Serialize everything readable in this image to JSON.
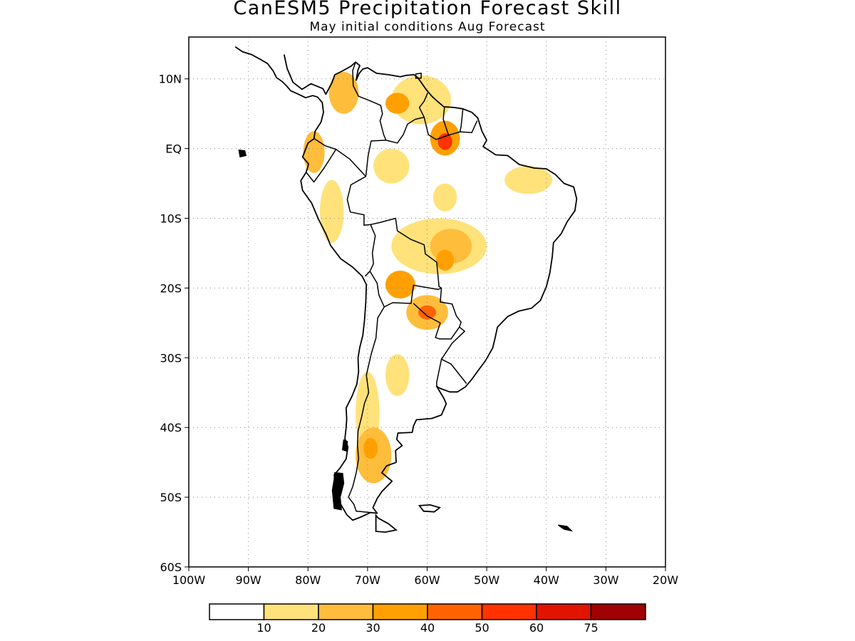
{
  "title": "CanESM5 Precipitation Forecast Skill",
  "subtitle": "May initial conditions  Aug Forecast",
  "map": {
    "region": "South America",
    "lon_range": [
      -100,
      -20
    ],
    "lat_range": [
      -60,
      16
    ],
    "lat_ticks": [
      {
        "value": 10,
        "label": "10N"
      },
      {
        "value": 0,
        "label": "EQ"
      },
      {
        "value": -10,
        "label": "10S"
      },
      {
        "value": -20,
        "label": "20S"
      },
      {
        "value": -30,
        "label": "30S"
      },
      {
        "value": -40,
        "label": "40S"
      },
      {
        "value": -50,
        "label": "50S"
      },
      {
        "value": -60,
        "label": "60S"
      }
    ],
    "lon_ticks": [
      {
        "value": -100,
        "label": "100W"
      },
      {
        "value": -90,
        "label": "90W"
      },
      {
        "value": -80,
        "label": "80W"
      },
      {
        "value": -70,
        "label": "70W"
      },
      {
        "value": -60,
        "label": "60W"
      },
      {
        "value": -50,
        "label": "50W"
      },
      {
        "value": -40,
        "label": "40W"
      },
      {
        "value": -30,
        "label": "30W"
      },
      {
        "value": -20,
        "label": "20W"
      }
    ],
    "gridlines": "dotted",
    "skill_regions": [
      {
        "name": "venezuela-guyana",
        "lon": -61,
        "lat": 7,
        "rx": 5,
        "ry": 3.5,
        "level": 1
      },
      {
        "name": "colombia-north",
        "lon": -74,
        "lat": 8,
        "rx": 2.5,
        "ry": 3,
        "level": 2
      },
      {
        "name": "venezuela-inner",
        "lon": -65,
        "lat": 6.5,
        "rx": 2,
        "ry": 1.5,
        "level": 3
      },
      {
        "name": "guiana-core",
        "lon": -57,
        "lat": 1.5,
        "rx": 2.5,
        "ry": 2.5,
        "level": 3
      },
      {
        "name": "guiana-peak",
        "lon": -57,
        "lat": 1,
        "rx": 1.2,
        "ry": 1.2,
        "level": 5
      },
      {
        "name": "ecuador-coast",
        "lon": -79,
        "lat": -0.5,
        "rx": 1.8,
        "ry": 3,
        "level": 2
      },
      {
        "name": "amazon-west",
        "lon": -66,
        "lat": -2.5,
        "rx": 3,
        "ry": 2.5,
        "level": 1
      },
      {
        "name": "amazon-central",
        "lon": -57,
        "lat": -7,
        "rx": 2,
        "ry": 2,
        "level": 1
      },
      {
        "name": "brazil-northeast",
        "lon": -43,
        "lat": -4.5,
        "rx": 4,
        "ry": 2,
        "level": 1
      },
      {
        "name": "peru-andes",
        "lon": -76,
        "lat": -9,
        "rx": 2,
        "ry": 4.5,
        "level": 1
      },
      {
        "name": "bolivia-mato-grosso",
        "lon": -58,
        "lat": -14,
        "rx": 8,
        "ry": 4,
        "level": 1
      },
      {
        "name": "mato-grosso-core",
        "lon": -56,
        "lat": -14,
        "rx": 3.5,
        "ry": 2.5,
        "level": 2
      },
      {
        "name": "mato-grosso-peak",
        "lon": -57,
        "lat": -16,
        "rx": 1.5,
        "ry": 1.5,
        "level": 3
      },
      {
        "name": "bolivia-south",
        "lon": -64.5,
        "lat": -19.5,
        "rx": 2.5,
        "ry": 2,
        "level": 3
      },
      {
        "name": "paraguay",
        "lon": -60,
        "lat": -23.5,
        "rx": 3.5,
        "ry": 2.5,
        "level": 2
      },
      {
        "name": "paraguay-peak",
        "lon": -60,
        "lat": -23.5,
        "rx": 1.5,
        "ry": 1,
        "level": 4
      },
      {
        "name": "argentina-central",
        "lon": -65,
        "lat": -32.5,
        "rx": 2,
        "ry": 3,
        "level": 1
      },
      {
        "name": "chile-argentina-andes",
        "lon": -70,
        "lat": -38,
        "rx": 2,
        "ry": 6,
        "level": 1
      },
      {
        "name": "patagonia",
        "lon": -69,
        "lat": -44,
        "rx": 3,
        "ry": 4,
        "level": 2
      },
      {
        "name": "patagonia-peak",
        "lon": -69.5,
        "lat": -43,
        "rx": 1.2,
        "ry": 1.5,
        "level": 3
      }
    ]
  },
  "colorbar": {
    "labels": [
      "10",
      "20",
      "30",
      "40",
      "50",
      "60",
      "75"
    ],
    "colors": [
      "#ffffff",
      "#ffe27a",
      "#ffbd3c",
      "#ffa000",
      "#ff6400",
      "#ff3200",
      "#e01400",
      "#a00000"
    ]
  }
}
